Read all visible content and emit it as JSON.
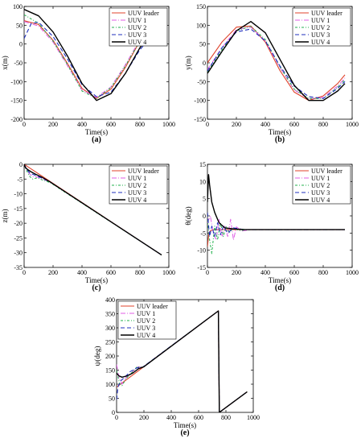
{
  "legend_names": [
    "UUV leader",
    "UUV 1",
    "UUV 2",
    "UUV 3",
    "UUV 4"
  ],
  "series_colors": [
    "#e0432b",
    "#e05ce6",
    "#22b14c",
    "#1f2fbd",
    "#000000"
  ],
  "chart_data": [
    {
      "id": "a",
      "panel_label": "(a)",
      "type": "line",
      "xlabel": "Time(s)",
      "ylabel": "x(m)",
      "xlim": [
        0,
        1000
      ],
      "ylim": [
        -200,
        100
      ],
      "xticks": [
        0,
        200,
        400,
        600,
        800,
        1000
      ],
      "yticks": [
        -200,
        -150,
        -100,
        -50,
        0,
        50,
        100
      ],
      "legend_position": "top-right",
      "series": [
        {
          "name": "UUV leader",
          "x": [
            0,
            100,
            200,
            300,
            400,
            500,
            600,
            700,
            800,
            900,
            950
          ],
          "y": [
            62,
            52,
            10,
            -52,
            -118,
            -145,
            -120,
            -62,
            8,
            50,
            55
          ]
        },
        {
          "name": "UUV 1",
          "x": [
            0,
            100,
            200,
            300,
            400,
            500,
            600,
            700,
            800,
            900,
            950
          ],
          "y": [
            60,
            48,
            5,
            -58,
            -122,
            -142,
            -114,
            -55,
            12,
            48,
            50
          ]
        },
        {
          "name": "UUV 2",
          "x": [
            0,
            100,
            200,
            300,
            400,
            500,
            600,
            700,
            800,
            900,
            950
          ],
          "y": [
            78,
            55,
            8,
            -55,
            -125,
            -145,
            -116,
            -58,
            8,
            52,
            56
          ]
        },
        {
          "name": "UUV 3",
          "x": [
            0,
            50,
            100,
            200,
            300,
            400,
            500,
            600,
            700,
            800,
            900,
            950
          ],
          "y": [
            15,
            55,
            58,
            20,
            -40,
            -108,
            -140,
            -128,
            -78,
            -15,
            28,
            40
          ]
        },
        {
          "name": "UUV 4",
          "x": [
            0,
            100,
            200,
            300,
            400,
            500,
            600,
            700,
            800,
            900,
            950
          ],
          "y": [
            92,
            75,
            32,
            -32,
            -105,
            -150,
            -132,
            -78,
            -10,
            40,
            55
          ]
        }
      ]
    },
    {
      "id": "b",
      "panel_label": "(b)",
      "type": "line",
      "xlabel": "Time(s)",
      "ylabel": "y(m)",
      "xlim": [
        0,
        1000
      ],
      "ylim": [
        -150,
        150
      ],
      "xticks": [
        0,
        200,
        400,
        600,
        800,
        1000
      ],
      "yticks": [
        -150,
        -100,
        -50,
        0,
        50,
        100,
        150
      ],
      "legend_position": "top-right",
      "series": [
        {
          "name": "UUV leader",
          "x": [
            0,
            100,
            200,
            300,
            400,
            500,
            600,
            700,
            800,
            900,
            950
          ],
          "y": [
            0,
            55,
            95,
            98,
            55,
            -20,
            -78,
            -100,
            -88,
            -55,
            -32
          ]
        },
        {
          "name": "UUV 1",
          "x": [
            0,
            100,
            200,
            300,
            400,
            500,
            600,
            700,
            800,
            900,
            950
          ],
          "y": [
            -18,
            40,
            88,
            95,
            58,
            -12,
            -72,
            -96,
            -92,
            -62,
            -40
          ]
        },
        {
          "name": "UUV 2",
          "x": [
            0,
            100,
            200,
            300,
            400,
            500,
            600,
            700,
            800,
            900,
            950
          ],
          "y": [
            -25,
            35,
            85,
            97,
            62,
            -10,
            -70,
            -95,
            -95,
            -65,
            -45
          ]
        },
        {
          "name": "UUV 3",
          "x": [
            0,
            100,
            200,
            300,
            400,
            500,
            600,
            700,
            800,
            900,
            950
          ],
          "y": [
            -22,
            40,
            82,
            90,
            58,
            -8,
            -62,
            -90,
            -95,
            -68,
            -50
          ]
        },
        {
          "name": "UUV 4",
          "x": [
            0,
            100,
            200,
            300,
            400,
            500,
            600,
            700,
            800,
            900,
            950
          ],
          "y": [
            -28,
            30,
            85,
            110,
            80,
            10,
            -60,
            -100,
            -100,
            -75,
            -55
          ]
        }
      ]
    },
    {
      "id": "c",
      "panel_label": "(c)",
      "type": "line",
      "xlabel": "Time(s)",
      "ylabel": "z(m)",
      "xlim": [
        0,
        1000
      ],
      "ylim": [
        -35,
        0
      ],
      "xticks": [
        0,
        200,
        400,
        600,
        800,
        1000
      ],
      "yticks": [
        -35,
        -30,
        -25,
        -20,
        -15,
        -10,
        -5,
        0
      ],
      "legend_position": "top-right",
      "series": [
        {
          "name": "UUV leader",
          "x": [
            0,
            950
          ],
          "y": [
            0,
            -30.8
          ]
        },
        {
          "name": "UUV 1",
          "x": [
            0,
            20,
            40,
            60,
            90,
            130,
            180,
            950
          ],
          "y": [
            0,
            -2.0,
            -3.4,
            -4.2,
            -4.3,
            -5.0,
            -6.0,
            -30.8
          ]
        },
        {
          "name": "UUV 2",
          "x": [
            0,
            20,
            40,
            60,
            90,
            130,
            180,
            950
          ],
          "y": [
            0,
            -2.4,
            -4.2,
            -5.0,
            -4.6,
            -5.4,
            -6.2,
            -30.8
          ]
        },
        {
          "name": "UUV 3",
          "x": [
            0,
            20,
            40,
            60,
            90,
            130,
            180,
            950
          ],
          "y": [
            0,
            -1.8,
            -3.0,
            -3.4,
            -4.0,
            -4.8,
            -6.0,
            -30.8
          ]
        },
        {
          "name": "UUV 4",
          "x": [
            0,
            10,
            25,
            50,
            80,
            120,
            180,
            950
          ],
          "y": [
            0,
            -1.2,
            -1.8,
            -2.6,
            -3.4,
            -4.3,
            -6.0,
            -30.8
          ]
        }
      ]
    },
    {
      "id": "d",
      "panel_label": "(d)",
      "type": "line",
      "xlabel": "Time(s)",
      "ylabel": "θ(deg)",
      "xlim": [
        0,
        1000
      ],
      "ylim": [
        -15,
        15
      ],
      "xticks": [
        0,
        200,
        400,
        600,
        800,
        1000
      ],
      "yticks": [
        -15,
        -10,
        -5,
        0,
        5,
        10,
        15
      ],
      "legend_position": "top-right",
      "series": [
        {
          "name": "UUV leader",
          "x": [
            0,
            10,
            25,
            50,
            100,
            200,
            950
          ],
          "y": [
            -9,
            -5,
            -4.2,
            -4,
            -4,
            -4,
            -4
          ]
        },
        {
          "name": "UUV 1",
          "x": [
            0,
            20,
            40,
            60,
            80,
            100,
            120,
            140,
            160,
            180,
            200,
            240,
            300,
            950
          ],
          "y": [
            -2,
            0,
            -5,
            -7,
            -1,
            -6,
            -3,
            -6,
            -1,
            -7,
            -3.2,
            -4.4,
            -4,
            -4
          ]
        },
        {
          "name": "UUV 2",
          "x": [
            0,
            15,
            30,
            50,
            70,
            90,
            110,
            130,
            150,
            180,
            220,
            280,
            950
          ],
          "y": [
            -1,
            -7,
            -11,
            -3,
            -7,
            -2,
            -6,
            -3,
            -5,
            -3.5,
            -4.3,
            -4,
            -4
          ]
        },
        {
          "name": "UUV 3",
          "x": [
            0,
            15,
            30,
            50,
            70,
            90,
            110,
            140,
            180,
            250,
            950
          ],
          "y": [
            1,
            -6,
            -3,
            -6,
            -2,
            -5.5,
            -3,
            -5,
            -3.5,
            -4,
            -4
          ]
        },
        {
          "name": "UUV 4",
          "x": [
            0,
            8,
            15,
            30,
            50,
            80,
            120,
            180,
            260,
            950
          ],
          "y": [
            4,
            12,
            9,
            4,
            1,
            -2,
            -3.5,
            -3.8,
            -4,
            -4
          ]
        }
      ]
    },
    {
      "id": "e",
      "panel_label": "(e)",
      "type": "line",
      "xlabel": "Time(s)",
      "ylabel": "ψ(deg)",
      "xlim": [
        0,
        1000
      ],
      "ylim": [
        0,
        400
      ],
      "xticks": [
        0,
        200,
        400,
        600,
        800,
        1000
      ],
      "yticks": [
        0,
        50,
        100,
        150,
        200,
        250,
        300,
        350,
        400
      ],
      "legend_position": "top-left",
      "series": [
        {
          "name": "UUV leader",
          "x": [
            0,
            745,
            752,
            955
          ],
          "y": [
            90,
            360,
            0,
            73
          ]
        },
        {
          "name": "UUV 1",
          "x": [
            0,
            20,
            40,
            70,
            110,
            150,
            190,
            745,
            752,
            955
          ],
          "y": [
            170,
            120,
            100,
            125,
            140,
            162,
            160,
            360,
            0,
            73
          ]
        },
        {
          "name": "UUV 2",
          "x": [
            0,
            20,
            40,
            70,
            110,
            150,
            190,
            745,
            752,
            955
          ],
          "y": [
            150,
            105,
            95,
            120,
            140,
            162,
            160,
            360,
            0,
            73
          ]
        },
        {
          "name": "UUV 3",
          "x": [
            0,
            10,
            30,
            60,
            100,
            150,
            190,
            745,
            752,
            955
          ],
          "y": [
            45,
            90,
            112,
            125,
            145,
            158,
            160,
            360,
            0,
            73
          ]
        },
        {
          "name": "UUV 4",
          "x": [
            0,
            15,
            40,
            80,
            120,
            160,
            200,
            745,
            752,
            955
          ],
          "y": [
            140,
            130,
            125,
            130,
            140,
            155,
            162,
            360,
            0,
            73
          ]
        }
      ]
    }
  ]
}
